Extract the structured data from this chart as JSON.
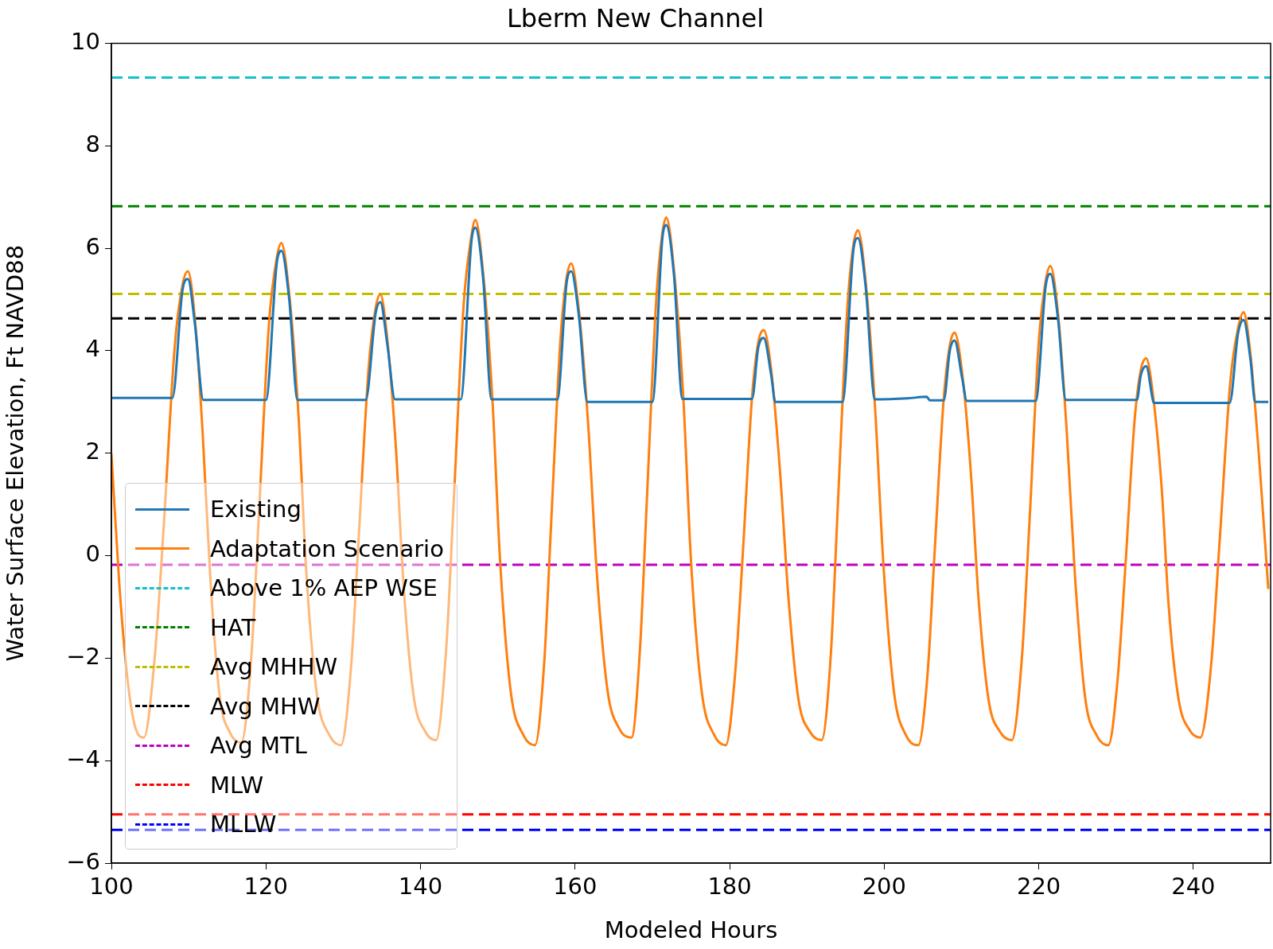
{
  "chart_data": {
    "type": "line",
    "title": "Lberm New Channel",
    "xlabel": "Modeled Hours",
    "ylabel": "Water Surface Elevation, Ft NAVD88",
    "xlim": [
      100,
      250
    ],
    "xticks": [
      100,
      120,
      140,
      160,
      180,
      200,
      220,
      240
    ],
    "ylim": [
      -6,
      10
    ],
    "yticks": [
      {
        "value": -6,
        "label": "−6"
      },
      {
        "value": -4,
        "label": "−4"
      },
      {
        "value": -2,
        "label": "−2"
      },
      0,
      2,
      4,
      6,
      8,
      10
    ],
    "grid": false,
    "legend": "bottom left",
    "marker": "none",
    "line_style": "solid",
    "series": [
      {
        "name": "Existing",
        "color": "#1f77b4",
        "x": [
          100,
          107.9,
          109.2,
          109.9,
          110.8,
          111.9,
          120.0,
          121.4,
          122.0,
          123.0,
          124.1,
          132.9,
          134.2,
          134.8,
          135.7,
          136.7,
          145.2,
          146.6,
          147.1,
          148.1,
          149.2,
          157.7,
          158.9,
          159.5,
          160.5,
          161.6,
          170.0,
          171.3,
          171.8,
          172.8,
          173.9,
          182.9,
          183.7,
          184.4,
          185.4,
          185.9,
          194.6,
          196.0,
          196.6,
          197.6,
          198.8,
          203.0,
          205.5,
          205.9,
          207.7,
          208.5,
          209.1,
          210.1,
          210.7,
          219.6,
          220.9,
          221.5,
          222.5,
          223.5,
          232.7,
          233.2,
          233.9,
          234.8,
          234.9,
          244.7,
          245.8,
          246.5,
          247.4,
          248.0,
          249.7
        ],
        "values": [
          3.08,
          3.08,
          5.18,
          5.4,
          4.53,
          3.04,
          3.04,
          5.71,
          5.95,
          5.02,
          3.04,
          3.04,
          4.74,
          4.95,
          4.13,
          3.05,
          3.05,
          6.15,
          6.4,
          5.42,
          3.05,
          3.05,
          5.32,
          5.55,
          4.67,
          3.0,
          3.0,
          6.2,
          6.45,
          5.47,
          3.06,
          3.06,
          4.06,
          4.25,
          3.5,
          3.0,
          3.0,
          5.95,
          6.2,
          5.25,
          3.05,
          3.07,
          3.1,
          3.03,
          3.03,
          4.01,
          4.2,
          3.45,
          3.02,
          3.02,
          5.27,
          5.5,
          4.61,
          3.04,
          3.04,
          3.52,
          3.7,
          3.01,
          2.98,
          2.98,
          4.35,
          4.6,
          3.82,
          3.0,
          3.0
        ]
      },
      {
        "name": "Adaptation Scenario",
        "color": "#ff7f0e",
        "x": [
          100,
          101,
          102,
          103,
          104.2,
          105.6,
          106.8,
          108.2,
          109.2,
          109.9,
          110.8,
          111.8,
          112.8,
          114.0,
          115.4,
          116.8,
          118.1,
          119.1,
          120.4,
          121.4,
          122.0,
          123.0,
          124.2,
          125.2,
          126.6,
          128.2,
          129.7,
          131.0,
          132.0,
          133.3,
          134.2,
          134.8,
          135.7,
          136.8,
          137.8,
          139.1,
          140.6,
          142.0,
          143.3,
          144.3,
          145.6,
          146.6,
          147.1,
          148.1,
          149.3,
          150.3,
          151.7,
          153.3,
          154.8,
          156.0,
          156.9,
          158.1,
          158.9,
          159.5,
          160.5,
          161.7,
          162.8,
          164.2,
          165.7,
          167.3,
          168.4,
          169.3,
          170.5,
          171.3,
          171.8,
          172.8,
          174.0,
          175.0,
          176.4,
          178.0,
          179.5,
          180.7,
          181.7,
          182.9,
          183.7,
          184.4,
          185.4,
          186.5,
          187.6,
          188.9,
          190.4,
          191.9,
          193.1,
          194.0,
          195.2,
          196.0,
          196.6,
          197.6,
          198.8,
          199.9,
          201.3,
          202.8,
          204.4,
          205.6,
          206.5,
          207.7,
          208.5,
          209.1,
          210.1,
          211.2,
          212.2,
          213.5,
          215.0,
          216.5,
          217.8,
          218.8,
          220.0,
          220.9,
          221.5,
          222.5,
          223.6,
          224.7,
          226.0,
          227.5,
          229.0,
          230.2,
          231.2,
          232.4,
          233.2,
          233.9,
          234.8,
          235.9,
          236.8,
          238.1,
          239.5,
          240.9,
          242.3,
          243.4,
          244.8,
          245.8,
          246.5,
          247.4,
          248.5,
          249.7
        ],
        "values": [
          2.0,
          -0.5,
          -2.3,
          -3.3,
          -3.55,
          -2.0,
          0.64,
          4.09,
          5.28,
          5.55,
          4.63,
          2.42,
          -0.43,
          -2.73,
          -3.47,
          -3.65,
          -1.99,
          0.84,
          4.54,
          5.81,
          6.1,
          5.12,
          2.77,
          -0.27,
          -2.72,
          -3.5,
          -3.7,
          -2.2,
          0.35,
          3.69,
          4.84,
          5.1,
          4.23,
          2.14,
          -0.56,
          -2.73,
          -3.43,
          -3.6,
          -1.87,
          1.07,
          4.93,
          6.25,
          6.55,
          5.52,
          3.06,
          -0.11,
          -2.68,
          -3.5,
          -3.7,
          -2.1,
          0.62,
          4.2,
          5.42,
          5.7,
          4.77,
          2.55,
          -0.31,
          -2.63,
          -3.37,
          -3.55,
          -1.82,
          1.12,
          4.98,
          6.3,
          6.6,
          5.57,
          3.1,
          -0.1,
          -2.67,
          -3.5,
          -3.7,
          -2.32,
          0.03,
          3.1,
          4.16,
          4.4,
          3.6,
          1.68,
          -0.8,
          -2.8,
          -3.44,
          -3.6,
          -1.91,
          0.98,
          4.76,
          6.05,
          6.35,
          5.35,
          2.93,
          -0.18,
          -2.7,
          -3.5,
          -3.7,
          -2.33,
          0.0,
          3.06,
          4.11,
          4.35,
          3.55,
          1.65,
          -0.82,
          -2.81,
          -3.44,
          -3.6,
          -2.03,
          0.66,
          4.17,
          5.37,
          5.65,
          4.71,
          2.47,
          -0.43,
          -2.77,
          -3.51,
          -3.7,
          -2.42,
          -0.23,
          2.64,
          3.62,
          3.85,
          3.11,
          1.33,
          -0.96,
          -2.81,
          -3.4,
          -3.55,
          -2.14,
          0.27,
          3.42,
          4.45,
          4.75,
          3.92,
          1.93,
          -0.65
        ]
      }
    ],
    "ref_lines": [
      {
        "axis": "y",
        "value": 9.33,
        "label": "Above 1% AEP WSE",
        "color": "#17becf",
        "line_style": "dashed"
      },
      {
        "axis": "y",
        "value": 6.82,
        "label": "HAT",
        "color": "#008000",
        "line_style": "dashed"
      },
      {
        "axis": "y",
        "value": 5.11,
        "label": "Avg MHHW",
        "color": "#bfbf00",
        "line_style": "dashed"
      },
      {
        "axis": "y",
        "value": 4.63,
        "label": "Avg MHW",
        "color": "#000000",
        "line_style": "dashed"
      },
      {
        "axis": "y",
        "value": -0.18,
        "label": "Avg MTL",
        "color": "#bf00bf",
        "line_style": "dashed"
      },
      {
        "axis": "y",
        "value": -5.05,
        "label": "MLW",
        "color": "#ff0000",
        "line_style": "dashed"
      },
      {
        "axis": "y",
        "value": -5.35,
        "label": "MLLW",
        "color": "#0000ff",
        "line_style": "dashed"
      }
    ]
  }
}
